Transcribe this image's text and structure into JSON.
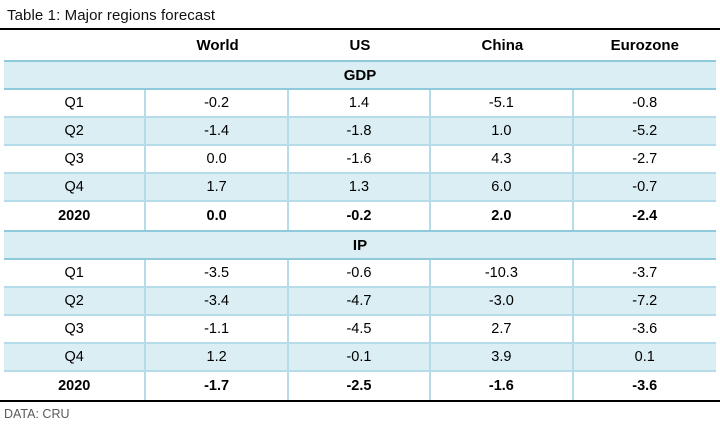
{
  "title": "Table 1: Major regions forecast",
  "footer": "DATA: CRU",
  "colors": {
    "band_fill": "#daeef3",
    "shaded_row_fill": "#daeef3",
    "band_border": "#8ecadb",
    "row_border": "#b5dde9",
    "rule": "#000000",
    "footer_text": "#595959"
  },
  "chart_data": {
    "type": "table",
    "title": "Table 1: Major regions forecast",
    "columns": [
      "World",
      "US",
      "China",
      "Eurozone"
    ],
    "sections": [
      {
        "label": "GDP",
        "rows": [
          {
            "label": "Q1",
            "values": [
              "-0.2",
              "1.4",
              "-5.1",
              "-0.8"
            ],
            "shaded": false,
            "bold": false
          },
          {
            "label": "Q2",
            "values": [
              "-1.4",
              "-1.8",
              "1.0",
              "-5.2"
            ],
            "shaded": true,
            "bold": false
          },
          {
            "label": "Q3",
            "values": [
              "0.0",
              "-1.6",
              "4.3",
              "-2.7"
            ],
            "shaded": false,
            "bold": false
          },
          {
            "label": "Q4",
            "values": [
              "1.7",
              "1.3",
              "6.0",
              "-0.7"
            ],
            "shaded": true,
            "bold": false
          },
          {
            "label": "2020",
            "values": [
              "0.0",
              "-0.2",
              "2.0",
              "-2.4"
            ],
            "shaded": false,
            "bold": true
          }
        ]
      },
      {
        "label": "IP",
        "rows": [
          {
            "label": "Q1",
            "values": [
              "-3.5",
              "-0.6",
              "-10.3",
              "-3.7"
            ],
            "shaded": false,
            "bold": false
          },
          {
            "label": "Q2",
            "values": [
              "-3.4",
              "-4.7",
              "-3.0",
              "-7.2"
            ],
            "shaded": true,
            "bold": false
          },
          {
            "label": "Q3",
            "values": [
              "-1.1",
              "-4.5",
              "2.7",
              "-3.6"
            ],
            "shaded": false,
            "bold": false
          },
          {
            "label": "Q4",
            "values": [
              "1.2",
              "-0.1",
              "3.9",
              "0.1"
            ],
            "shaded": true,
            "bold": false
          },
          {
            "label": "2020",
            "values": [
              "-1.7",
              "-2.5",
              "-1.6",
              "-3.6"
            ],
            "shaded": false,
            "bold": true
          }
        ]
      }
    ],
    "source": "DATA: CRU"
  }
}
